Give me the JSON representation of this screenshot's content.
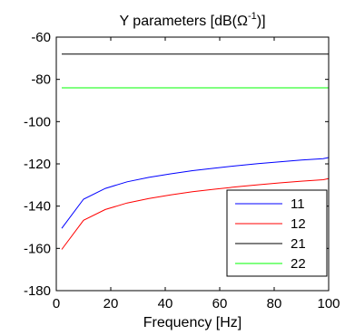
{
  "chart_data": {
    "type": "line",
    "title": "Y parameters [dB(Ω",
    "title_sup": "-1",
    "title_end": ")]",
    "xlabel": "Frequency [Hz]",
    "ylabel": "",
    "xlim": [
      0,
      100
    ],
    "ylim": [
      -180,
      -60
    ],
    "xticks": [
      "0",
      "20",
      "40",
      "60",
      "80",
      "100"
    ],
    "yticks": [
      "-60",
      "-80",
      "-100",
      "-120",
      "-140",
      "-160",
      "-180"
    ],
    "grid": false,
    "legend_position": "bottom-right",
    "x": [
      2,
      10,
      18,
      26,
      34,
      42,
      50,
      58,
      66,
      74,
      82,
      90,
      98,
      100
    ],
    "series": [
      {
        "name": "11",
        "color": "#0000ff",
        "values": [
          -150.5,
          -136.7,
          -131.6,
          -128.5,
          -126.4,
          -124.7,
          -123.2,
          -122.0,
          -120.9,
          -119.9,
          -119.0,
          -118.2,
          -117.5,
          -117.0
        ]
      },
      {
        "name": "12",
        "color": "#ff0000",
        "values": [
          -160.5,
          -146.7,
          -141.6,
          -138.5,
          -136.4,
          -134.7,
          -133.2,
          -132.0,
          -130.9,
          -129.9,
          -129.0,
          -128.2,
          -127.5,
          -127.0
        ]
      },
      {
        "name": "21",
        "color": "#000000",
        "values": [
          -68,
          -68,
          -68,
          -68,
          -68,
          -68,
          -68,
          -68,
          -68,
          -68,
          -68,
          -68,
          -68,
          -68
        ]
      },
      {
        "name": "22",
        "color": "#00ff00",
        "values": [
          -84,
          -84,
          -84,
          -84,
          -84,
          -84,
          -84,
          -84,
          -84,
          -84,
          -84,
          -84,
          -84,
          -84
        ]
      }
    ]
  }
}
